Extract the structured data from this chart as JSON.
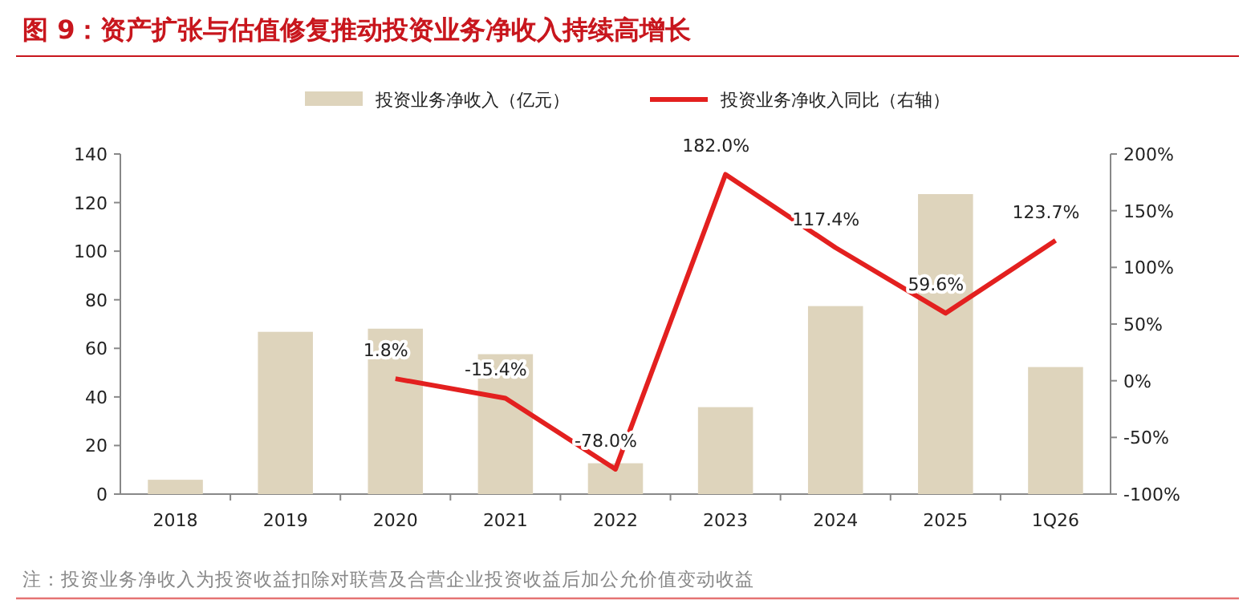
{
  "chart_data": {
    "type": "bar",
    "title": "图 9：资产扩张与估值修复推动投资业务净收入持续高增长",
    "categories": [
      "2018",
      "2019",
      "2020",
      "2021",
      "2022",
      "2023",
      "2024",
      "2025",
      "1Q26"
    ],
    "series": [
      {
        "name": "投资业务净收入（亿元）",
        "type": "bar",
        "color": "#ded4bc",
        "values": [
          5.9,
          66.8,
          68.1,
          57.6,
          12.7,
          35.8,
          77.4,
          123.5,
          52.3
        ]
      },
      {
        "name": "投资业务净收入同比（右轴）",
        "type": "line",
        "axis": "y2",
        "color": "#e3201f",
        "values": [
          null,
          null,
          1.8,
          -15.4,
          -78.0,
          182.0,
          117.4,
          59.6,
          123.7
        ],
        "value_labels": [
          null,
          null,
          "1.8%",
          "-15.4%",
          "-78.0%",
          "182.0%",
          "117.4%",
          "59.6%",
          "123.7%"
        ]
      }
    ],
    "ylim": [
      0,
      140
    ],
    "yticks": [
      0,
      20,
      40,
      60,
      80,
      100,
      120,
      140
    ],
    "y2lim": [
      -100,
      200
    ],
    "y2ticks": [
      {
        "value": -100,
        "label": "-100%"
      },
      {
        "value": -50,
        "label": "-50%"
      },
      {
        "value": 0,
        "label": "0%"
      },
      {
        "value": 50,
        "label": "50%"
      },
      {
        "value": 100,
        "label": "100%"
      },
      {
        "value": 150,
        "label": "150%"
      },
      {
        "value": 200,
        "label": "200%"
      }
    ],
    "legend": "top",
    "grid": false,
    "annotations": [
      "注：投资业务净收入为投资收益扣除对联营及合营企业投资收益后加公允价值变动收益"
    ]
  }
}
